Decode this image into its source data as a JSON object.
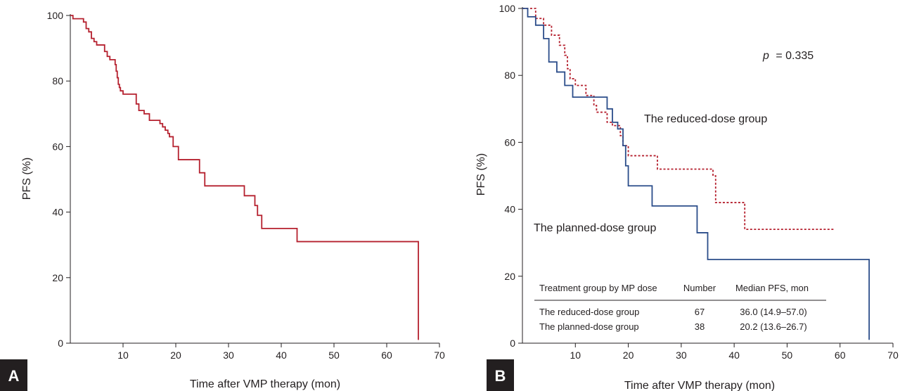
{
  "chart_data": [
    {
      "type": "line",
      "panel_label": "A",
      "xlabel": "Time after VMP therapy (mon)",
      "ylabel": "PFS (%)",
      "xlim": [
        0,
        70
      ],
      "ylim": [
        0,
        100
      ],
      "xticks": [
        "10",
        "20",
        "30",
        "40",
        "50",
        "60",
        "70"
      ],
      "yticks": [
        "0",
        "20",
        "40",
        "60",
        "80",
        "100"
      ],
      "line_style": "step",
      "series": [
        {
          "color": "#b5202e",
          "x": [
            0,
            0.5,
            2.5,
            3,
            3.5,
            4,
            4.5,
            5,
            6.5,
            7,
            7.5,
            8.5,
            8.7,
            8.9,
            9.1,
            9.3,
            9.5,
            10,
            12.5,
            13,
            14,
            15,
            17,
            17.5,
            18,
            18.5,
            18.8,
            19.5,
            20.5,
            24.5,
            25.5,
            33,
            35,
            35.5,
            36.3,
            36.7,
            43,
            66,
            66
          ],
          "y": [
            100,
            99,
            98,
            96,
            95,
            93,
            92,
            91,
            89,
            87.5,
            86.5,
            85,
            83,
            81,
            79,
            78,
            77,
            76,
            73,
            71,
            70,
            68,
            67,
            66,
            65,
            64,
            63,
            60,
            56,
            52,
            48,
            45,
            42,
            39,
            35,
            35,
            31,
            31,
            1
          ]
        }
      ]
    },
    {
      "type": "line",
      "panel_label": "B",
      "xlabel": "Time after VMP therapy (mon)",
      "ylabel": "PFS (%)",
      "xlim": [
        0,
        70
      ],
      "ylim": [
        0,
        100
      ],
      "xticks": [
        "10",
        "20",
        "30",
        "40",
        "50",
        "60",
        "70"
      ],
      "yticks": [
        "0",
        "20",
        "40",
        "60",
        "80",
        "100"
      ],
      "line_style": "step",
      "p_value": "= 0.335",
      "p_symbol": "p",
      "series": [
        {
          "name": "The reduced-dose group",
          "color": "#b5202e",
          "dash": "dotted",
          "x": [
            0,
            2.5,
            4,
            5.5,
            7,
            8,
            8.5,
            9,
            10,
            12,
            13.5,
            14,
            16,
            17,
            18.5,
            19,
            20,
            25.5,
            36,
            36.5,
            42,
            59
          ],
          "y": [
            100,
            97,
            95,
            92,
            89,
            86,
            82,
            79,
            77,
            74,
            71,
            69,
            66,
            65,
            62,
            59,
            56,
            52,
            50,
            42,
            34,
            34
          ]
        },
        {
          "name": "The planned-dose group",
          "color": "#2b4d8a",
          "dash": "solid",
          "x": [
            0,
            1,
            2.5,
            4,
            5,
            6.5,
            8,
            9.5,
            12,
            16,
            17,
            18,
            19,
            19.5,
            20,
            24.5,
            33,
            35,
            65.5,
            65.5
          ],
          "y": [
            100,
            97.5,
            95,
            91,
            84,
            81,
            77,
            73.5,
            73.5,
            70,
            66,
            64,
            59,
            53,
            47,
            41,
            33,
            25,
            25,
            1
          ]
        }
      ],
      "annotations": {
        "reduced_label": "The reduced-dose group",
        "planned_label": "The planned-dose group"
      },
      "table": {
        "headers": [
          "Treatment group by MP dose",
          "Number",
          "Median PFS, mon"
        ],
        "rows": [
          [
            "The reduced-dose group",
            "67",
            "36.0 (14.9–57.0)"
          ],
          [
            "The planned-dose group",
            "38",
            "20.2 (13.6–26.7)"
          ]
        ]
      }
    }
  ]
}
